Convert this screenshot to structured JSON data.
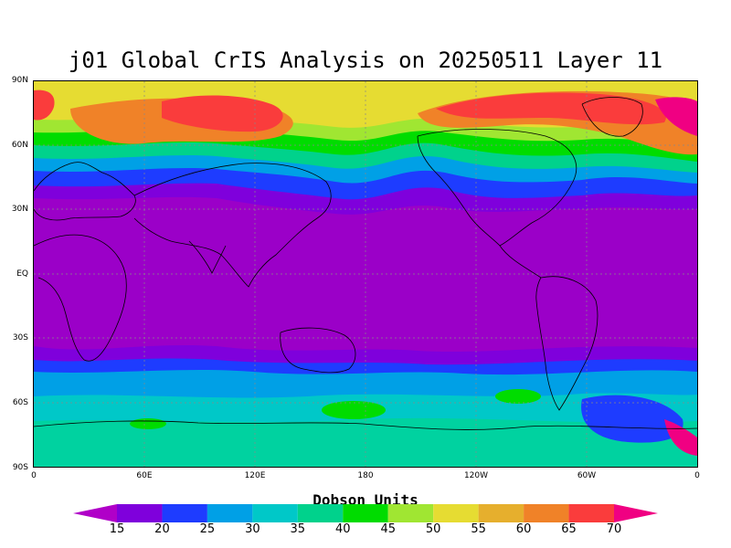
{
  "title": "j01 Global CrIS Analysis on 20250511 Layer 11",
  "colorbar": {
    "title": "Dobson Units",
    "levels": [
      "15",
      "20",
      "25",
      "30",
      "35",
      "40",
      "45",
      "50",
      "55",
      "60",
      "65",
      "70"
    ],
    "colors": [
      "#b000c8",
      "#7f00dc",
      "#1e3cff",
      "#00a0e6",
      "#00c8c8",
      "#00d28c",
      "#00dc00",
      "#a0e632",
      "#e6dc32",
      "#e6af2d",
      "#f08228",
      "#fa3c3c",
      "#f00082"
    ]
  },
  "map": {
    "lat_labels": [
      "90N",
      "60N",
      "30N",
      "EQ",
      "30S",
      "60S",
      "90S"
    ],
    "lon_labels": [
      "0",
      "60E",
      "120E",
      "180",
      "120W",
      "60W",
      "0"
    ],
    "background_color": "#9600c8"
  }
}
